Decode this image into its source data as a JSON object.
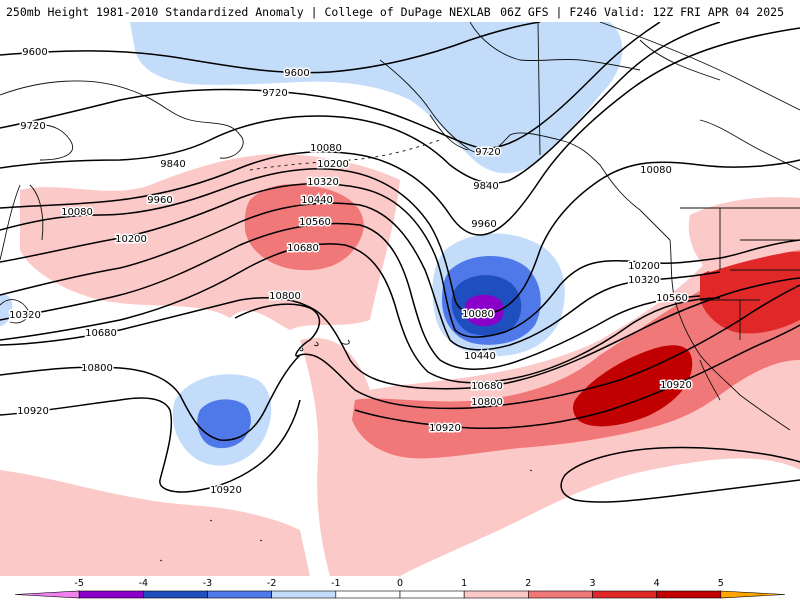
{
  "header": {
    "left": "250mb Height 1981-2010 Standardized Anomaly | College of DuPage NEXLAB",
    "right": "06Z GFS | F246 Valid: 12Z FRI APR 04 2025"
  },
  "colors": {
    "a_m5": "#ee82ee",
    "a_m4": "#8b00c8",
    "a_m3": "#1f4fbf",
    "a_m2": "#4f78e8",
    "a_m1": "#c3dcfa",
    "a_p1": "#fcc9c9",
    "a_p2": "#f17878",
    "a_p3": "#e02828",
    "a_p4": "#c00000",
    "a_p5": "#ffa500",
    "land": "#ffffff",
    "contour": "#000000",
    "coast": "#111111"
  },
  "contour_labels": [
    {
      "id": "l9600a",
      "text": "9600"
    },
    {
      "id": "l9600b",
      "text": "9600"
    },
    {
      "id": "l9720a",
      "text": "9720"
    },
    {
      "id": "l9720b",
      "text": "9720"
    },
    {
      "id": "l9720c",
      "text": "9720"
    },
    {
      "id": "l9840a",
      "text": "9840"
    },
    {
      "id": "l9840b",
      "text": "9840"
    },
    {
      "id": "l9960a",
      "text": "9960"
    },
    {
      "id": "l9960b",
      "text": "9960"
    },
    {
      "id": "l10080a",
      "text": "10080"
    },
    {
      "id": "l10080b",
      "text": "10080"
    },
    {
      "id": "l10080c",
      "text": "10080"
    },
    {
      "id": "l10080d",
      "text": "10080"
    },
    {
      "id": "l10200a",
      "text": "10200"
    },
    {
      "id": "l10200b",
      "text": "10200"
    },
    {
      "id": "l10200c",
      "text": "10200"
    },
    {
      "id": "l10320a",
      "text": "10320"
    },
    {
      "id": "l10320b",
      "text": "10320"
    },
    {
      "id": "l10320c",
      "text": "10320"
    },
    {
      "id": "l10440a",
      "text": "10440"
    },
    {
      "id": "l10440b",
      "text": "10440"
    },
    {
      "id": "l10560a",
      "text": "10560"
    },
    {
      "id": "l10560b",
      "text": "10560"
    },
    {
      "id": "l10680a",
      "text": "10680"
    },
    {
      "id": "l10680b",
      "text": "10680"
    },
    {
      "id": "l10680c",
      "text": "10680"
    },
    {
      "id": "l10800a",
      "text": "10800"
    },
    {
      "id": "l10800b",
      "text": "10800"
    },
    {
      "id": "l10800c",
      "text": "10800"
    },
    {
      "id": "l10920a",
      "text": "10920"
    },
    {
      "id": "l10920b",
      "text": "10920"
    },
    {
      "id": "l10920c",
      "text": "10920"
    },
    {
      "id": "l10920d",
      "text": "10920"
    }
  ],
  "colorbar": {
    "ticks": [
      "-5",
      "-4",
      "-3",
      "-2",
      "-1",
      "0",
      "1",
      "2",
      "3",
      "4",
      "5"
    ]
  }
}
